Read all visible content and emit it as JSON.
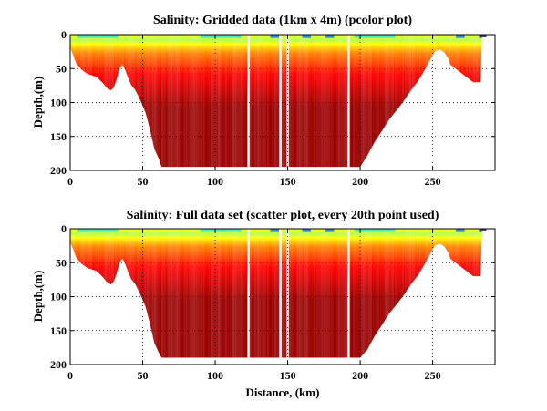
{
  "chart_data": [
    {
      "type": "heatmap",
      "title": "Salinity: Gridded data (1km x 4m) (pcolor plot)",
      "xlabel": "",
      "ylabel": "Depth,(m)",
      "xlim": [
        0,
        293
      ],
      "ylim": [
        200,
        0
      ],
      "x_ticks": [
        0,
        50,
        100,
        150,
        200,
        250
      ],
      "y_ticks": [
        0,
        50,
        100,
        150,
        200
      ],
      "grid": true,
      "colormap": [
        "#00007f",
        "#0060ff",
        "#20e0e0",
        "#b0ff50",
        "#ffff00",
        "#ff8000",
        "#ff0000",
        "#9a0000"
      ],
      "bottom_profile": {
        "distance_km": [
          0,
          2,
          4,
          8,
          12,
          18,
          22,
          25,
          28,
          30,
          32,
          34,
          36,
          38,
          40,
          42,
          45,
          48,
          52,
          55,
          58,
          61,
          63,
          200,
          205,
          210,
          215,
          220,
          225,
          230,
          235,
          240,
          245,
          250,
          252,
          255,
          258,
          261,
          262,
          278,
          283,
          284,
          287
        ],
        "depth_m": [
          20,
          30,
          42,
          52,
          58,
          62,
          70,
          78,
          82,
          78,
          66,
          50,
          44,
          52,
          64,
          74,
          82,
          95,
          115,
          140,
          168,
          182,
          195,
          195,
          178,
          158,
          142,
          125,
          112,
          98,
          82,
          68,
          50,
          30,
          24,
          22,
          26,
          36,
          44,
          70,
          70,
          4,
          4
        ]
      },
      "data_gaps_km": [
        123,
        145,
        150,
        192
      ],
      "surface_layer_m": 10,
      "max_depth_m": 195
    },
    {
      "type": "heatmap",
      "title": "Salinity: Full data set (scatter plot, every 20th point used)",
      "xlabel": "Distance, (km)",
      "ylabel": "Depth,(m)",
      "xlim": [
        0,
        293
      ],
      "ylim": [
        200,
        0
      ],
      "x_ticks": [
        0,
        50,
        100,
        150,
        200,
        250
      ],
      "y_ticks": [
        0,
        50,
        100,
        150,
        200
      ],
      "grid": true,
      "colormap": [
        "#00007f",
        "#0060ff",
        "#20e0e0",
        "#b0ff50",
        "#ffff00",
        "#ff8000",
        "#ff0000",
        "#9a0000"
      ],
      "bottom_profile": {
        "distance_km": [
          0,
          2,
          4,
          8,
          12,
          18,
          22,
          25,
          28,
          30,
          32,
          34,
          36,
          38,
          40,
          42,
          45,
          48,
          52,
          55,
          58,
          61,
          63,
          200,
          205,
          210,
          215,
          220,
          225,
          230,
          235,
          240,
          245,
          250,
          252,
          255,
          258,
          261,
          262,
          278,
          283,
          284,
          287
        ],
        "depth_m": [
          20,
          30,
          42,
          52,
          58,
          62,
          70,
          78,
          82,
          78,
          66,
          50,
          44,
          52,
          64,
          74,
          82,
          95,
          115,
          140,
          168,
          182,
          190,
          190,
          178,
          158,
          142,
          125,
          112,
          98,
          82,
          68,
          50,
          30,
          24,
          22,
          26,
          36,
          44,
          70,
          70,
          4,
          4
        ]
      },
      "data_gaps_km": [
        123,
        145,
        150,
        192
      ],
      "surface_layer_m": 10,
      "max_depth_m": 190
    }
  ]
}
